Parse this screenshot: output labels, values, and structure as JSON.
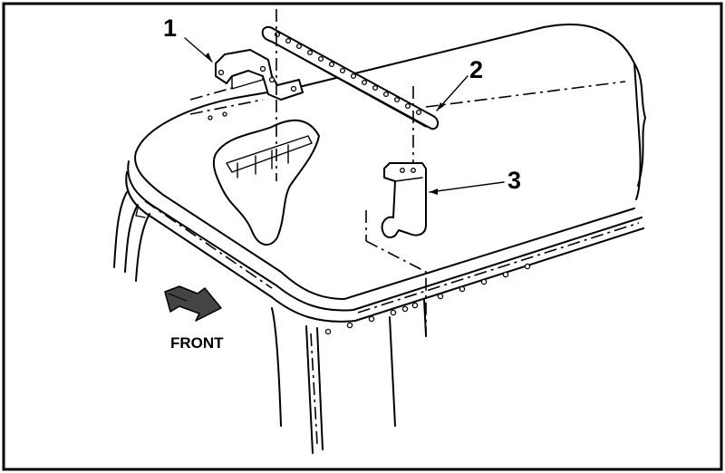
{
  "callouts": {
    "one": "1",
    "two": "2",
    "three": "3"
  },
  "front_label": "FRONT",
  "colors": {
    "ink": "#000000",
    "paper": "#ffffff"
  }
}
